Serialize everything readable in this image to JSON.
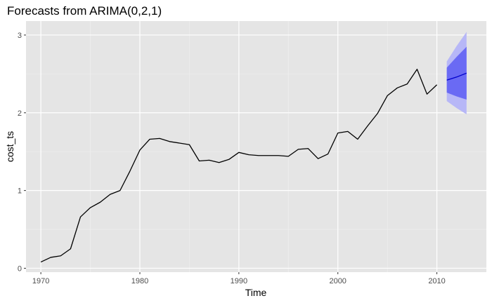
{
  "chart_data": {
    "type": "line",
    "title": "Forecasts from ARIMA(0,2,1)",
    "xlabel": "Time",
    "ylabel": "cost_ts",
    "xlim": [
      1968.5,
      2015
    ],
    "ylim": [
      -0.05,
      3.18
    ],
    "x_ticks": [
      1970,
      1980,
      1990,
      2000,
      2010
    ],
    "y_ticks": [
      0,
      1,
      2,
      3
    ],
    "x_tick_labels": [
      "1970",
      "1980",
      "1990",
      "2000",
      "2010"
    ],
    "y_tick_labels": [
      "0",
      "1",
      "2",
      "3"
    ],
    "grid": true,
    "legend": "none",
    "colors": {
      "panel_background": "#e5e5e5",
      "grid_major": "#ffffff",
      "grid_minor": "#f0f0f0",
      "series": "#000000",
      "forecast_mean": "#0000cc",
      "interval_80": "#6a6af4",
      "interval_95": "#b7b7f7"
    },
    "series": [
      {
        "x": [
          1970,
          1971,
          1972,
          1973,
          1974,
          1975,
          1976,
          1977,
          1978,
          1979,
          1980,
          1981,
          1982,
          1983,
          1984,
          1985,
          1986,
          1987,
          1988,
          1989,
          1990,
          1991,
          1992,
          1993,
          1994,
          1995,
          1996,
          1997,
          1998,
          1999,
          2000,
          2001,
          2002,
          2003,
          2004,
          2005,
          2006,
          2007,
          2008,
          2009,
          2010
        ],
        "values": [
          0.08,
          0.14,
          0.16,
          0.25,
          0.66,
          0.78,
          0.85,
          0.95,
          1.0,
          1.25,
          1.52,
          1.66,
          1.67,
          1.63,
          1.61,
          1.59,
          1.38,
          1.39,
          1.36,
          1.4,
          1.49,
          1.46,
          1.45,
          1.45,
          1.45,
          1.44,
          1.53,
          1.54,
          1.41,
          1.47,
          1.74,
          1.76,
          1.66,
          1.83,
          1.99,
          2.22,
          2.32,
          2.37,
          2.56,
          2.24,
          2.36
        ]
      }
    ],
    "forecast": {
      "x": [
        2011,
        2012,
        2013
      ],
      "mean": [
        2.42,
        2.46,
        2.51
      ],
      "lo80": [
        2.26,
        2.21,
        2.17
      ],
      "hi80": [
        2.58,
        2.72,
        2.85
      ],
      "lo95": [
        2.15,
        2.06,
        1.98
      ],
      "hi95": [
        2.66,
        2.86,
        3.04
      ]
    }
  }
}
